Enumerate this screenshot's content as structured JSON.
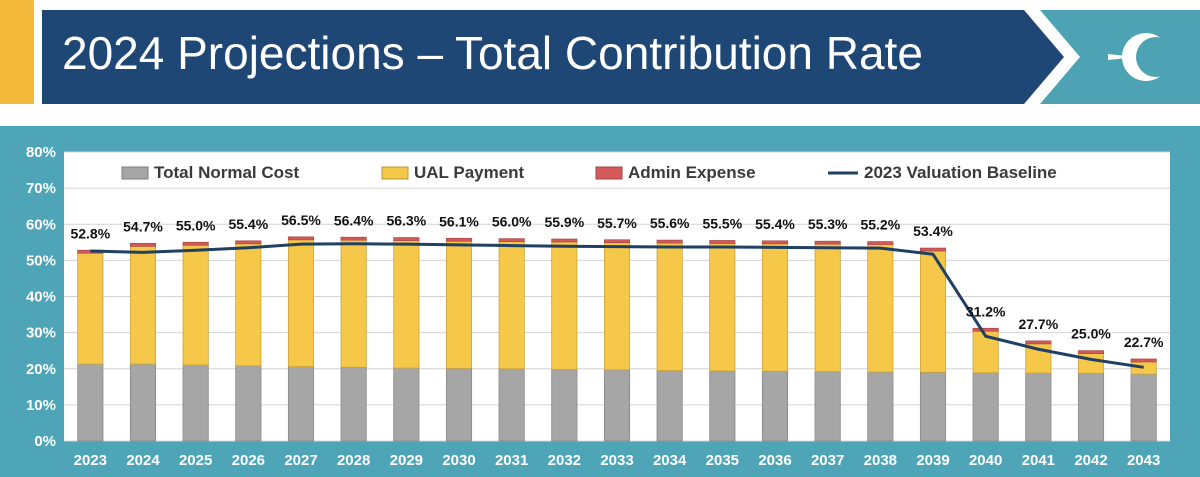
{
  "header": {
    "title": "2024 Projections – Total Contribution Rate",
    "logo_icon": "crescent-c-logo",
    "colors": {
      "banner": "#1f4775",
      "teal": "#4da3b4",
      "accent": "#f2b93b"
    }
  },
  "chart_data": {
    "type": "bar",
    "stacked": true,
    "title": "",
    "xlabel": "",
    "ylabel": "",
    "ylim": [
      0,
      80
    ],
    "y_ticks": [
      "0%",
      "10%",
      "20%",
      "30%",
      "40%",
      "50%",
      "60%",
      "70%",
      "80%"
    ],
    "grid": true,
    "legend_position": "top",
    "categories": [
      "2023",
      "2024",
      "2025",
      "2026",
      "2027",
      "2028",
      "2029",
      "2030",
      "2031",
      "2032",
      "2033",
      "2034",
      "2035",
      "2036",
      "2037",
      "2038",
      "2039",
      "2040",
      "2041",
      "2042",
      "2043"
    ],
    "series": [
      {
        "name": "Total Normal Cost",
        "kind": "bar",
        "color": "#a6a6a6",
        "values": [
          21.3,
          21.3,
          21.0,
          20.8,
          20.6,
          20.4,
          20.2,
          20.1,
          20.0,
          19.8,
          19.7,
          19.5,
          19.4,
          19.3,
          19.2,
          19.1,
          19.0,
          18.9,
          18.8,
          18.7,
          18.5
        ]
      },
      {
        "name": "UAL Payment",
        "kind": "bar",
        "color": "#f5c84a",
        "values": [
          30.7,
          32.6,
          33.2,
          33.8,
          35.1,
          35.2,
          35.3,
          35.2,
          35.2,
          35.3,
          35.2,
          35.3,
          35.3,
          35.3,
          35.3,
          35.3,
          33.6,
          11.5,
          8.1,
          5.5,
          3.4
        ]
      },
      {
        "name": "Admin Expense",
        "kind": "bar",
        "color": "#d45a5a",
        "values": [
          0.8,
          0.8,
          0.8,
          0.8,
          0.8,
          0.8,
          0.8,
          0.8,
          0.8,
          0.8,
          0.8,
          0.8,
          0.8,
          0.8,
          0.8,
          0.8,
          0.8,
          0.8,
          0.8,
          0.8,
          0.8
        ]
      },
      {
        "name": "2023 Valuation Baseline",
        "kind": "line",
        "color": "#1f3f63",
        "values": [
          52.6,
          52.2,
          52.8,
          53.5,
          54.5,
          54.6,
          54.5,
          54.3,
          54.1,
          53.9,
          53.8,
          53.7,
          53.7,
          53.6,
          53.5,
          53.4,
          51.7,
          29.0,
          25.4,
          22.6,
          20.4
        ]
      }
    ],
    "data_labels": [
      "52.8%",
      "54.7%",
      "55.0%",
      "55.4%",
      "56.5%",
      "56.4%",
      "56.3%",
      "56.1%",
      "56.0%",
      "55.9%",
      "55.7%",
      "55.6%",
      "55.5%",
      "55.4%",
      "55.3%",
      "55.2%",
      "53.4%",
      "31.2%",
      "27.7%",
      "25.0%",
      "22.7%"
    ],
    "totals": [
      52.8,
      54.7,
      55.0,
      55.4,
      56.5,
      56.4,
      56.3,
      56.1,
      56.0,
      55.9,
      55.7,
      55.6,
      55.5,
      55.4,
      55.3,
      55.2,
      53.4,
      31.2,
      27.7,
      25.0,
      22.7
    ]
  }
}
